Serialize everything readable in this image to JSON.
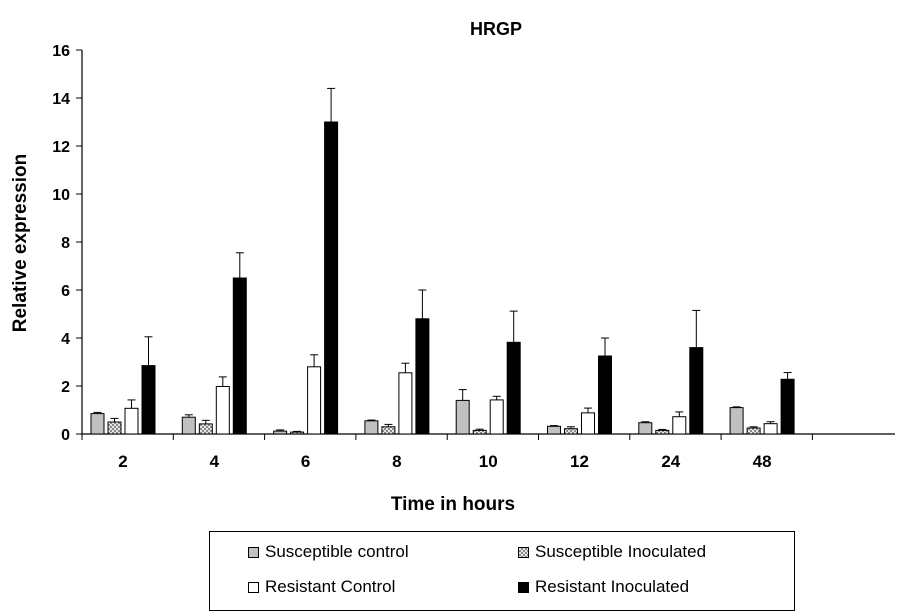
{
  "chart_data": {
    "type": "bar",
    "title": "HRGP",
    "xlabel": "Time in hours",
    "ylabel": "Relative expression",
    "ylim": [
      0,
      16
    ],
    "yticks": [
      0,
      2,
      4,
      6,
      8,
      10,
      12,
      14,
      16
    ],
    "categories": [
      "2",
      "4",
      "6",
      "8",
      "10",
      "12",
      "24",
      "48"
    ],
    "series": [
      {
        "name": "Susceptible control",
        "color": "#c0c0c0",
        "pattern": "solid",
        "values": [
          0.85,
          0.7,
          0.12,
          0.55,
          1.4,
          0.32,
          0.47,
          1.1
        ],
        "errors": [
          0.05,
          0.1,
          0.05,
          0.03,
          0.45,
          0.03,
          0.04,
          0.03
        ]
      },
      {
        "name": "Susceptible Inoculated",
        "color": "#a8a8a8",
        "pattern": "checker",
        "values": [
          0.5,
          0.42,
          0.08,
          0.3,
          0.15,
          0.22,
          0.15,
          0.25
        ],
        "errors": [
          0.15,
          0.15,
          0.03,
          0.1,
          0.05,
          0.08,
          0.04,
          0.05
        ]
      },
      {
        "name": "Resistant Control",
        "color": "#ffffff",
        "pattern": "solid",
        "values": [
          1.07,
          1.98,
          2.8,
          2.55,
          1.42,
          0.88,
          0.72,
          0.43
        ],
        "errors": [
          0.35,
          0.4,
          0.5,
          0.4,
          0.15,
          0.2,
          0.2,
          0.08
        ]
      },
      {
        "name": "Resistant Inoculated",
        "color": "#000000",
        "pattern": "solid",
        "values": [
          2.85,
          6.5,
          13.0,
          4.8,
          3.82,
          3.25,
          3.6,
          2.28
        ],
        "errors": [
          1.2,
          1.05,
          1.4,
          1.2,
          1.3,
          0.75,
          1.55,
          0.28
        ]
      }
    ],
    "legend_position": "bottom",
    "grid": false
  }
}
